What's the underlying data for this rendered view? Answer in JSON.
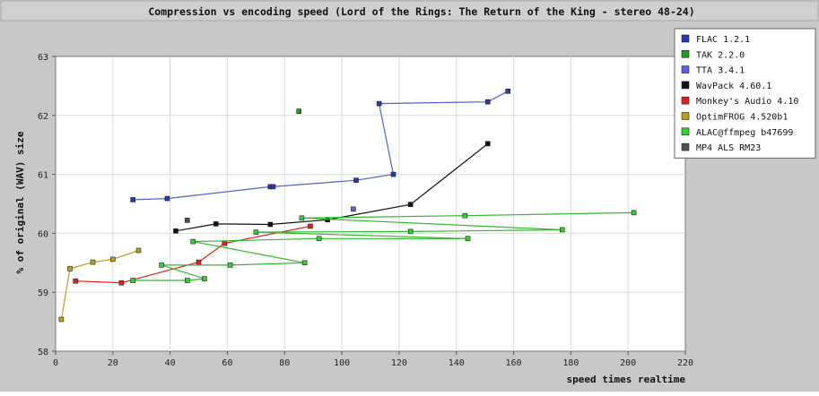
{
  "chart_data": {
    "type": "line",
    "title": "Compression vs encoding speed (Lord of the Rings: The Return of the King - stereo 48-24)",
    "xlabel": "speed times realtime",
    "ylabel": "% of original (WAV) size",
    "xlim": [
      0,
      220
    ],
    "ylim": [
      58,
      63
    ],
    "xticks": [
      "0",
      "20",
      "40",
      "60",
      "80",
      "100",
      "120",
      "140",
      "160",
      "180",
      "200",
      "220"
    ],
    "yticks": [
      "58",
      "59",
      "60",
      "61",
      "62",
      "63"
    ],
    "grid": true,
    "legend_position": "top-right",
    "colors": {
      "background": "#c8c8c8",
      "plot_area": "#ffffff",
      "grid": "#dcdcdc"
    },
    "series": [
      {
        "name": "FLAC 1.2.1",
        "color": "#2a3ab0",
        "line": "#5560cc",
        "connected": true,
        "points": [
          [
            27,
            60.57
          ],
          [
            39,
            60.59
          ],
          [
            75,
            60.79
          ],
          [
            76,
            60.79
          ],
          [
            105,
            60.9
          ],
          [
            118,
            61.0
          ],
          [
            113,
            62.2
          ],
          [
            151,
            62.23
          ],
          [
            158,
            62.41
          ]
        ]
      },
      {
        "name": "TAK 2.2.0",
        "color": "#18a018",
        "line": "#18a018",
        "connected": false,
        "points": [
          [
            85,
            62.07
          ]
        ]
      },
      {
        "name": "TTA 3.4.1",
        "color": "#5a64e0",
        "line": "#5a64e0",
        "connected": false,
        "points": [
          [
            104,
            60.41
          ]
        ]
      },
      {
        "name": "WavPack 4.60.1",
        "color": "#111111",
        "line": "#111111",
        "connected": true,
        "points": [
          [
            42,
            60.04
          ],
          [
            56,
            60.16
          ],
          [
            75,
            60.15
          ],
          [
            95,
            60.23
          ],
          [
            124,
            60.49
          ],
          [
            151,
            61.52
          ]
        ]
      },
      {
        "name": "Monkey's Audio 4.10",
        "color": "#e02020",
        "line": "#e02020",
        "connected": true,
        "points": [
          [
            7,
            59.19
          ],
          [
            23,
            59.16
          ],
          [
            50,
            59.51
          ],
          [
            59,
            59.83
          ],
          [
            89,
            60.12
          ]
        ]
      },
      {
        "name": "OptimFROG 4.520b1",
        "color": "#b8a020",
        "line": "#b8a020",
        "connected": true,
        "points": [
          [
            2,
            58.54
          ],
          [
            5,
            59.4
          ],
          [
            13,
            59.51
          ],
          [
            20,
            59.56
          ],
          [
            29,
            59.71
          ]
        ]
      },
      {
        "name": "ALAC@ffmpeg b47699",
        "color": "#30d030",
        "line": "#30b830",
        "connected": true,
        "points": [
          [
            202,
            60.35
          ],
          [
            143,
            60.3
          ],
          [
            86,
            60.26
          ],
          [
            177,
            60.06
          ],
          [
            124,
            60.03
          ],
          [
            70,
            60.02
          ],
          [
            144,
            59.91
          ],
          [
            92,
            59.91
          ],
          [
            48,
            59.86
          ],
          [
            87,
            59.5
          ],
          [
            61,
            59.46
          ],
          [
            37,
            59.46
          ],
          [
            52,
            59.23
          ],
          [
            46,
            59.2
          ],
          [
            27,
            59.2
          ]
        ]
      },
      {
        "name": "MP4 ALS RM23",
        "color": "#505050",
        "line": "#505050",
        "connected": false,
        "points": [
          [
            46,
            60.22
          ]
        ]
      }
    ]
  }
}
